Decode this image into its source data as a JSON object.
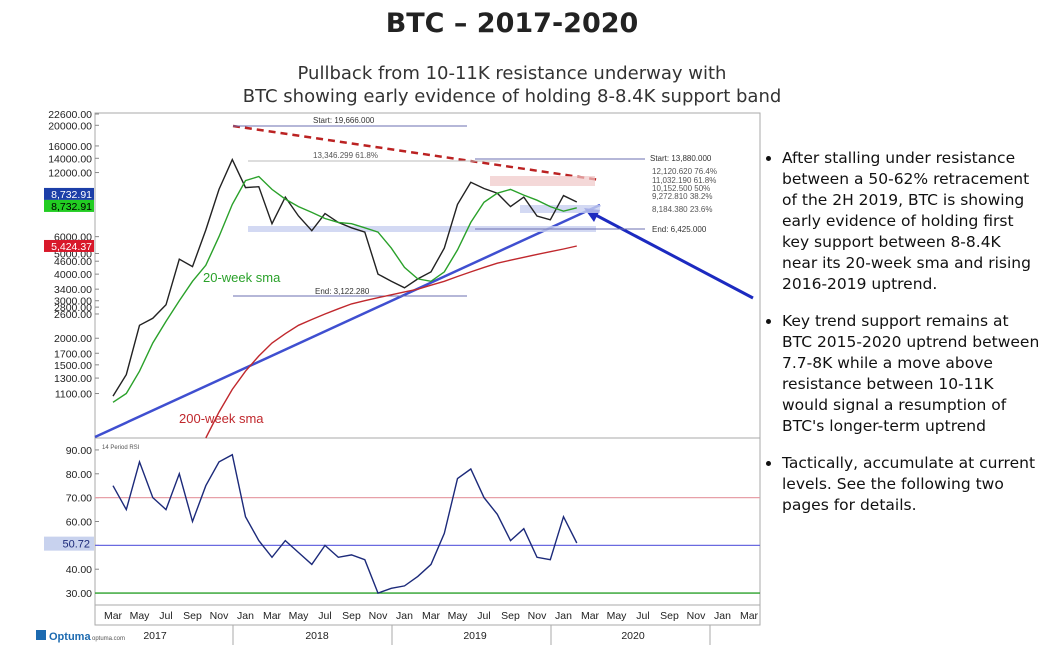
{
  "title": "BTC – 2017-2020",
  "subtitle": [
    "Pullback from 10-11K resistance underway with",
    "BTC showing early evidence of holding 8-8.4K support band"
  ],
  "bullets": [
    "After stalling under resistance between a 50-62% retracement of the 2H 2019, BTC is showing early evidence of holding first key support between 8-8.4K near its 20-week sma and rising 2016-2019 uptrend.",
    "Key trend support remains at BTC 2015-2020 uptrend between 7.7-8K while a move above resistance between 10-11K would signal a resumption of BTC's longer-term uptrend",
    "Tactically, accumulate at current levels. See the following two pages for details."
  ],
  "logo": "Optuma",
  "logo_url": "optuma.com",
  "chart_data": [
    {
      "type": "line",
      "log_scale": true,
      "categories": [
        "Mar",
        null,
        "May",
        null,
        "Jul",
        null,
        "Sep",
        null,
        "Nov",
        null,
        "Jan",
        null,
        "Mar",
        null,
        "May",
        null,
        "Jul",
        null,
        "Sep",
        null,
        "Nov",
        null,
        "Jan",
        null,
        "Mar",
        null,
        "May",
        null,
        "Jul",
        null,
        "Sep",
        null,
        "Nov",
        null,
        "Jan",
        null,
        "Mar",
        null,
        "May",
        null,
        "Jul",
        null,
        "Sep",
        null,
        "Nov",
        null,
        "Jan",
        null,
        "Mar"
      ],
      "years": [
        "2017",
        "2018",
        "2019",
        "2020"
      ],
      "series": [
        {
          "name": "BTC",
          "color": "#222222",
          "values": [
            1070,
            1350,
            2300,
            2480,
            2870,
            4700,
            4340,
            6450,
            10000,
            13800,
            10200,
            10300,
            6900,
            9200,
            7500,
            6400,
            7700,
            7000,
            6600,
            6300,
            4000,
            3700,
            3450,
            3800,
            4100,
            5300,
            8500,
            10800,
            10100,
            9600,
            8300,
            9200,
            7500,
            7200,
            9350,
            8730,
            null,
            null,
            null,
            null,
            null,
            null,
            null,
            null,
            null,
            null,
            null,
            null,
            null
          ]
        },
        {
          "name": "20-week sma",
          "color": "#2aa12a",
          "values": [
            1000,
            1100,
            1400,
            1900,
            2400,
            3000,
            3700,
            4400,
            6000,
            8500,
            11000,
            11500,
            10000,
            9000,
            8300,
            7800,
            7300,
            7000,
            6900,
            6600,
            6300,
            5300,
            4300,
            3800,
            3700,
            4100,
            5200,
            7000,
            8700,
            9600,
            10000,
            9400,
            8900,
            8300,
            7900,
            8200,
            null,
            null,
            null,
            null,
            null,
            null,
            null,
            null,
            null,
            null,
            null,
            null,
            null
          ]
        },
        {
          "name": "200-week sma",
          "color": "#c0282d",
          "values": [
            null,
            null,
            null,
            null,
            null,
            null,
            null,
            680,
            900,
            1150,
            1400,
            1650,
            1900,
            2100,
            2300,
            2450,
            2600,
            2750,
            2900,
            3000,
            3100,
            3200,
            3300,
            3400,
            3550,
            3700,
            3900,
            4100,
            4300,
            4500,
            4650,
            4800,
            4950,
            5100,
            5250,
            5424,
            null,
            null,
            null,
            null,
            null,
            null,
            null,
            null,
            null,
            null,
            null,
            null,
            null
          ]
        }
      ],
      "price_tags": [
        {
          "label": "8,732.91",
          "value": 8732.91,
          "color": "#1c3fa8"
        },
        {
          "label": "8,732.91",
          "value": 8732.91,
          "color": "#22cc22"
        },
        {
          "label": "5,424.37",
          "value": 5424.37,
          "color": "#d8182a"
        }
      ],
      "annotations": [
        "Start:  19,666.000",
        "13,346.299  61.8%",
        "Start:   13,880.000",
        "12,120.620  76.4%",
        "11,032.190  61.8%",
        "10,152.500  50%",
        "9,272.810  38.2%",
        "8,184.380  23.6%",
        "End:   6,425.000",
        "End:  3,122.280",
        "20-week sma",
        "200-week sma"
      ],
      "ylim": [
        680,
        22600
      ],
      "yticks": [
        {
          "value": 22600,
          "label": "22600.00"
        },
        {
          "value": 20000,
          "label": "20000.00"
        },
        {
          "value": 16000,
          "label": "16000.00"
        },
        {
          "value": 14000,
          "label": "14000.00"
        },
        {
          "value": 12000,
          "label": "12000.00"
        },
        {
          "value": 6000,
          "label": "6000.00"
        },
        {
          "value": 5000,
          "label": "5000.00"
        },
        {
          "value": 4600,
          "label": "4600.00"
        },
        {
          "value": 4000,
          "label": "4000.00"
        },
        {
          "value": 3400,
          "label": "3400.00"
        },
        {
          "value": 3000,
          "label": "3000.00"
        },
        {
          "value": 2800,
          "label": "2800.00"
        },
        {
          "value": 2600,
          "label": "2600.00"
        },
        {
          "value": 2000,
          "label": "2000.00"
        },
        {
          "value": 1700,
          "label": "1700.00"
        },
        {
          "value": 1500,
          "label": "1500.00"
        },
        {
          "value": 1300,
          "label": "1300.00"
        },
        {
          "value": 1100,
          "label": "1100.00"
        }
      ]
    },
    {
      "type": "line",
      "label": "14 Period RSI",
      "series": [
        {
          "name": "RSI",
          "color": "#1c2a7a",
          "values": [
            75,
            65,
            85,
            70,
            65,
            80,
            60,
            75,
            85,
            88,
            62,
            52,
            45,
            52,
            47,
            42,
            50,
            45,
            46,
            44,
            30,
            32,
            33,
            37,
            42,
            55,
            78,
            82,
            70,
            63,
            52,
            57,
            45,
            44,
            62,
            51,
            null,
            null,
            null,
            null,
            null,
            null,
            null,
            null,
            null,
            null,
            null,
            null,
            null
          ]
        }
      ],
      "levels": [
        {
          "value": 70,
          "color": "#e7a0a8"
        },
        {
          "value": 50,
          "color": "#6a6ae0"
        },
        {
          "value": 30,
          "color": "#2aa12a"
        }
      ],
      "price_tag": {
        "label": "50.72",
        "value": 50.72
      },
      "ylim": [
        25,
        95
      ],
      "yticks": [
        {
          "value": 30,
          "label": "30.00"
        },
        {
          "value": 40,
          "label": "40.00"
        },
        {
          "value": 50,
          "label": "50.00"
        },
        {
          "value": 60,
          "label": "60.00"
        },
        {
          "value": 70,
          "label": "70.00"
        },
        {
          "value": 80,
          "label": "80.00"
        },
        {
          "value": 90,
          "label": "90.00"
        }
      ]
    }
  ]
}
